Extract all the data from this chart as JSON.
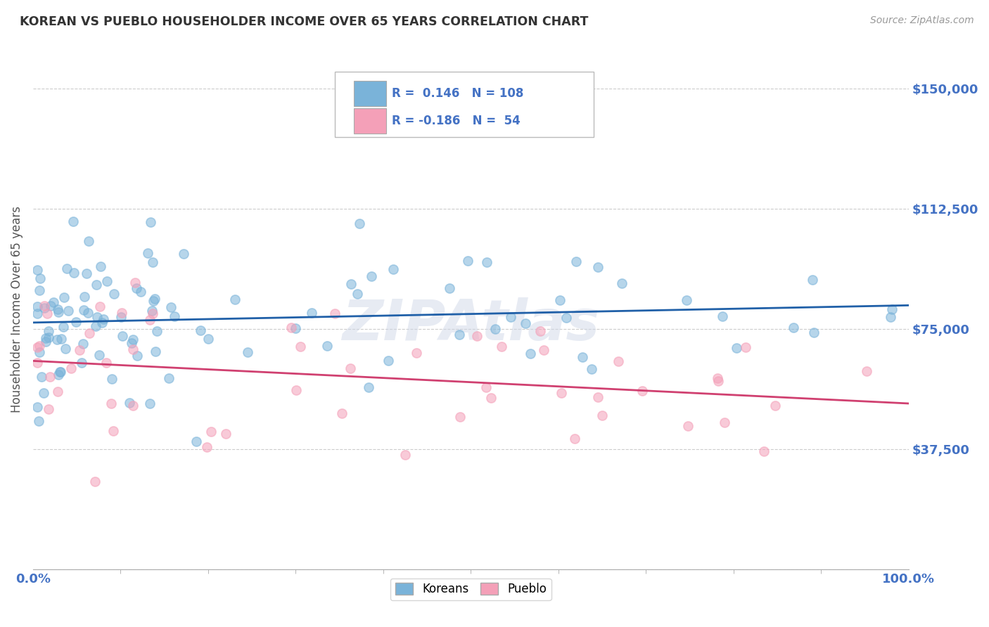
{
  "title": "KOREAN VS PUEBLO HOUSEHOLDER INCOME OVER 65 YEARS CORRELATION CHART",
  "source": "Source: ZipAtlas.com",
  "ylabel": "Householder Income Over 65 years",
  "xlim": [
    0,
    100
  ],
  "ylim": [
    0,
    162500
  ],
  "yticks": [
    0,
    37500,
    75000,
    112500,
    150000
  ],
  "ytick_labels": [
    "",
    "$37,500",
    "$75,000",
    "$112,500",
    "$150,000"
  ],
  "korean_color": "#7ab3d9",
  "pueblo_color": "#f4a0b8",
  "korean_line_color": "#2060a8",
  "pueblo_line_color": "#d04070",
  "legend_r_korean": "0.146",
  "legend_n_korean": "108",
  "legend_r_pueblo": "-0.186",
  "legend_n_pueblo": "54",
  "watermark": "ZIPAtlas",
  "background_color": "#ffffff",
  "grid_color": "#cccccc",
  "title_color": "#333333",
  "axis_label_color": "#4472c4",
  "text_color": "#333333"
}
